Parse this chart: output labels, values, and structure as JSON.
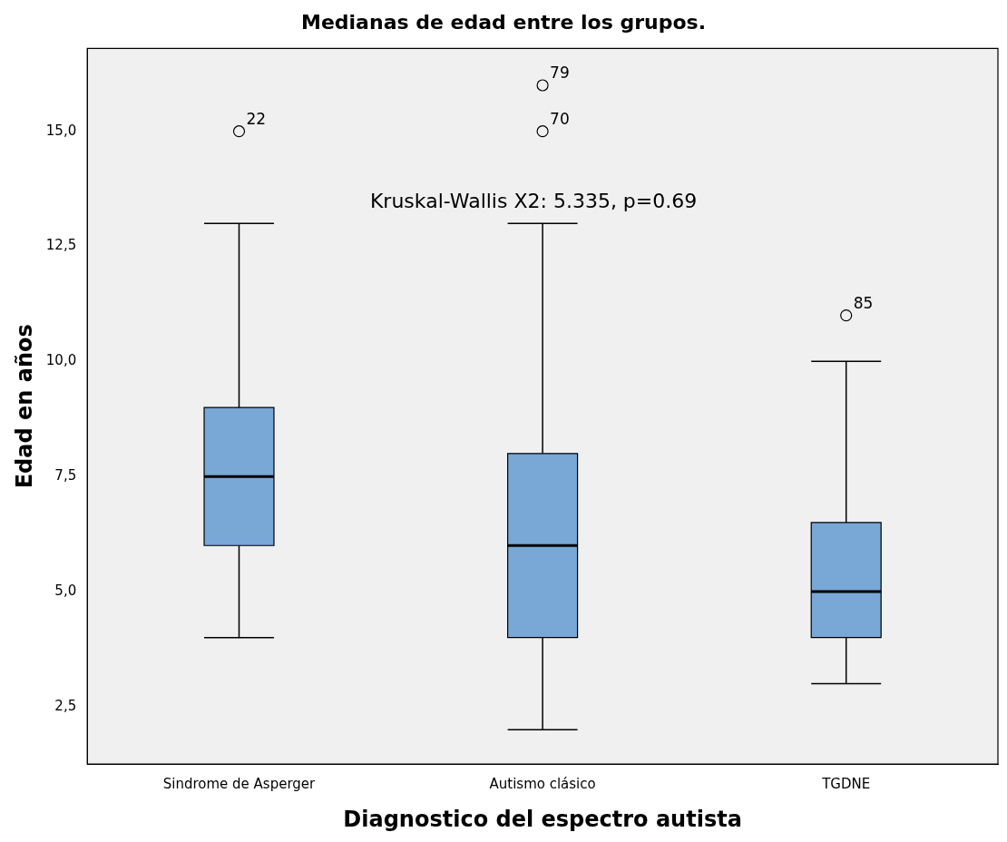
{
  "chart_data": {
    "type": "box",
    "title": "Medianas de edad entre los grupos.",
    "xlabel": "Diagnostico del espectro autista",
    "ylabel": "Edad en años",
    "categories": [
      "Sindrome de Asperger",
      "Autismo clásico",
      "TGDNE"
    ],
    "color": "#79a7d6",
    "marker": "circle",
    "boxes": [
      {
        "low": 4,
        "q1": 6,
        "median": 7.5,
        "q3": 9,
        "high": 13,
        "outliers": [
          15
        ]
      },
      {
        "low": 2,
        "q1": 4,
        "median": 6,
        "q3": 8,
        "high": 13,
        "outliers": [
          15,
          16
        ]
      },
      {
        "low": 3,
        "q1": 4,
        "median": 5,
        "q3": 6.5,
        "high": 10,
        "outliers": [
          11
        ]
      }
    ],
    "ylim": [
      1.25,
      16.8
    ],
    "yticks": [
      {
        "value": 2.5,
        "label": "2,5"
      },
      {
        "value": 5,
        "label": "5,0"
      },
      {
        "value": 7.5,
        "label": "7,5"
      },
      {
        "value": 10,
        "label": "10,0"
      },
      {
        "value": 12.5,
        "label": "12,5"
      },
      {
        "value": 15,
        "label": "15,0"
      }
    ],
    "annotations": [
      "Kruskal-Wallis X2: 5.335, p=0.69",
      "22",
      "70",
      "79",
      "85"
    ]
  }
}
